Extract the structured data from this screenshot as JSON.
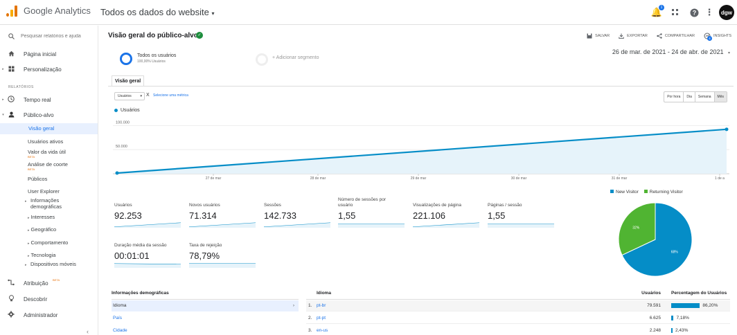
{
  "app": {
    "brand": "Google Analytics",
    "property": "Todos os dados do website",
    "property_caret": "▾",
    "avatar": "dgw",
    "notif_count": "1"
  },
  "colors": {
    "accent": "#1a73e8",
    "series": "#058dc7",
    "returning": "#50b432"
  },
  "sidebar": {
    "search_placeholder": "Pesquisar relatórios e ajuda",
    "home": "Página inicial",
    "custom": "Personalização",
    "section": "RELATÓRIOS",
    "realtime": "Tempo real",
    "audience": "Público-alvo",
    "audience_items": [
      {
        "label": "Visão geral"
      },
      {
        "label": "Usuários ativos"
      },
      {
        "label": "Valor da vida útil",
        "beta": "BETA"
      },
      {
        "label": "Análise de coorte",
        "beta": "BETA"
      },
      {
        "label": "Públicos"
      },
      {
        "label": "User Explorer"
      },
      {
        "label": "Informações demográficas"
      },
      {
        "label": "Interesses"
      },
      {
        "label": "Geográfico"
      },
      {
        "label": "Comportamento"
      },
      {
        "label": "Tecnologia"
      },
      {
        "label": "Dispositivos móveis"
      }
    ],
    "attribution": "Atribuição",
    "attribution_beta": "BETA",
    "discover": "Descobrir",
    "admin": "Administrador",
    "collapse": "‹"
  },
  "header": {
    "title": "Visão geral do público-alvo",
    "actions": {
      "save": "SALVAR",
      "export": "EXPORTAR",
      "share": "COMPARTILHAR",
      "insights": "INSIGHTS"
    },
    "insights_count": "4"
  },
  "segments": {
    "primary_name": "Todos os usuários",
    "primary_pct": "100,00% Usuários",
    "add": "+ Adicionar segmento"
  },
  "date_range": "26 de mar. de 2021 - 24 de abr. de 2021",
  "date_caret": "▾",
  "tab": "Visão geral",
  "metric_select": "Usuários",
  "metric_select_caret": "▾",
  "metric_remove": "X",
  "metric_link": "Selecione uma métrica",
  "granularity": [
    "Por hora",
    "Dia",
    "Semana",
    "Mês"
  ],
  "chart_data": {
    "type": "area",
    "series": [
      {
        "name": "Usuários",
        "values": [
          1410,
          92253
        ]
      }
    ],
    "y_ticks": [
      "100.000",
      "50.000"
    ],
    "x_ticks": [
      "27 de mar",
      "28 de mar",
      "29 de mar",
      "30 de mar",
      "31 de mar",
      "1 de a"
    ],
    "ylim": [
      0,
      115000
    ]
  },
  "kpis": [
    {
      "label": "Usuários",
      "value": "92.253"
    },
    {
      "label": "Novos usuários",
      "value": "71.314"
    },
    {
      "label": "Sessões",
      "value": "142.733"
    },
    {
      "label": "Número de sessões por usuário",
      "value": "1,55"
    },
    {
      "label": "Visualizações de página",
      "value": "221.106"
    },
    {
      "label": "Páginas / sessão",
      "value": "1,55"
    },
    {
      "label": "Duração média da sessão",
      "value": "00:01:01"
    },
    {
      "label": "Taxa de rejeição",
      "value": "78,79%"
    }
  ],
  "pie": {
    "legend": [
      "New Visitor",
      "Returning Visitor"
    ],
    "slices": [
      {
        "name": "New Visitor",
        "value": 68,
        "label": "68%"
      },
      {
        "name": "Returning Visitor",
        "value": 32,
        "label": "32%"
      }
    ]
  },
  "demographics": {
    "header": "Informações demográficas",
    "items": [
      "Idioma",
      "País",
      "Cidade"
    ],
    "active_caret": "›"
  },
  "language_table": {
    "headers": {
      "lang": "Idioma",
      "users": "Usuários",
      "pct": "Percentagem do Usuários"
    },
    "rows": [
      {
        "idx": "1.",
        "code": "pt-br",
        "users": "79.591",
        "pct": "86,20%",
        "fraction": 0.862
      },
      {
        "idx": "2.",
        "code": "pt-pt",
        "users": "6.625",
        "pct": "7,18%",
        "fraction": 0.0718
      },
      {
        "idx": "3.",
        "code": "en-us",
        "users": "2.248",
        "pct": "2,43%",
        "fraction": 0.0243
      }
    ]
  }
}
